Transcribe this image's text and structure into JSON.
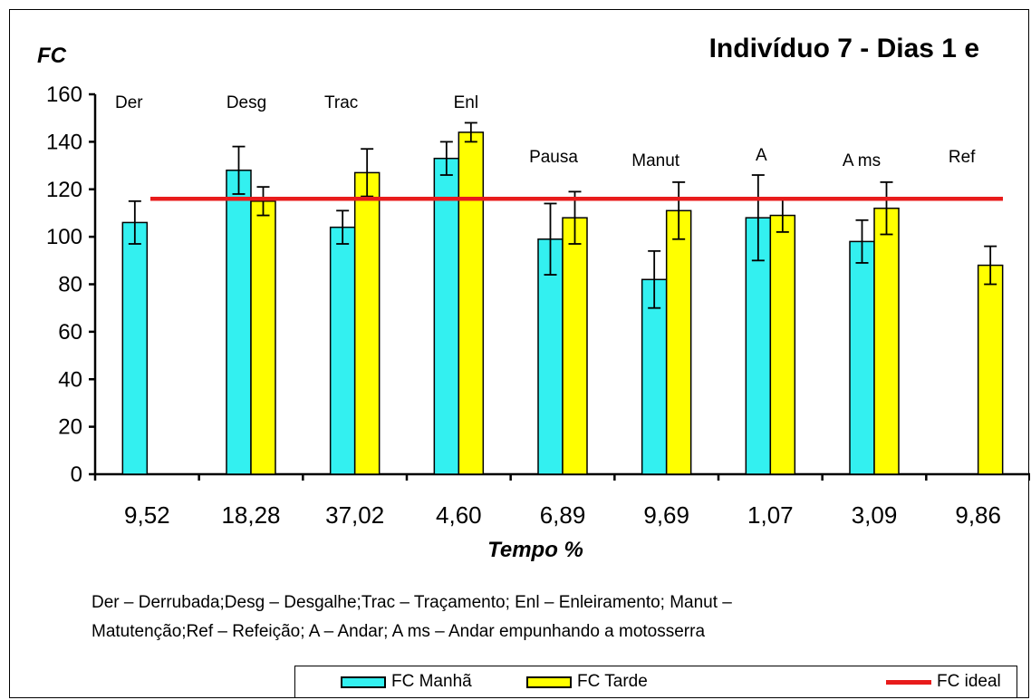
{
  "chart_data": {
    "type": "bar",
    "title": "Indivíduo 7 - Dias 1 e",
    "ylabel": "FC",
    "xlabel": "Tempo %",
    "ylim": [
      0,
      160
    ],
    "yticks": [
      0,
      20,
      40,
      60,
      80,
      100,
      120,
      140,
      160
    ],
    "categories": [
      "9,52",
      "18,28",
      "37,02",
      "4,60",
      "6,89",
      "9,69",
      "1,07",
      "3,09",
      "9,86"
    ],
    "activity_labels": [
      "Der",
      "Desg",
      "Trac",
      "Enl",
      "Pausa",
      "Manut",
      "A",
      "A ms",
      "Ref"
    ],
    "series": [
      {
        "name": "FC Manhã",
        "color": "#33f0f0",
        "values": [
          106,
          128,
          104,
          133,
          99,
          82,
          108,
          98,
          null
        ],
        "error": [
          9,
          10,
          7,
          7,
          15,
          12,
          18,
          9,
          null
        ]
      },
      {
        "name": "FC Tarde",
        "color": "#ffff00",
        "values": [
          null,
          115,
          127,
          144,
          108,
          111,
          109,
          112,
          88
        ],
        "error": [
          null,
          6,
          10,
          4,
          11,
          12,
          7,
          11,
          8
        ]
      }
    ],
    "reference_line": {
      "name": "FC ideal",
      "value": 116,
      "color": "#e81b1b"
    },
    "grid": false,
    "legend_position": "bottom"
  },
  "footnote": {
    "line1": "Der – Derrubada;Desg  – Desgalhe;Trac – Traçamento; Enl – Enleiramento; Manut –",
    "line2": "Matutenção;Ref – Refeição; A – Andar; A ms – Andar empunhando a motosserra"
  }
}
